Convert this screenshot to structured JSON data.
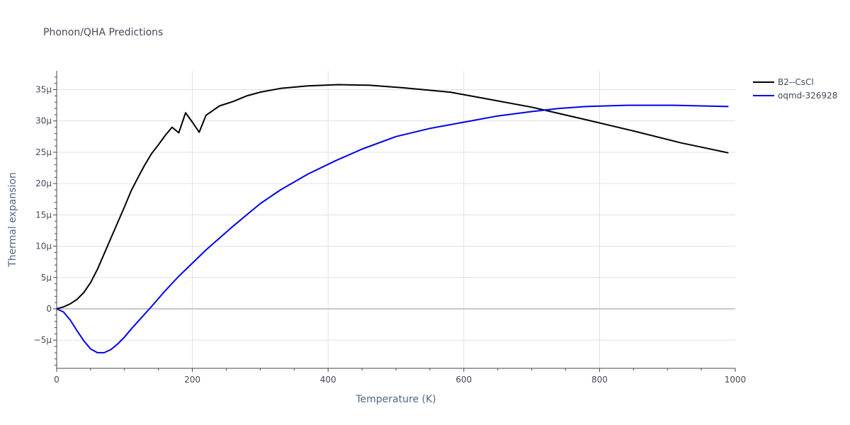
{
  "chart_data": {
    "type": "line",
    "title": "Phonon/QHA Predictions",
    "xlabel": "Temperature (K)",
    "ylabel": "Thermal expansion",
    "xlim": [
      0,
      1000
    ],
    "ylim": [
      -9.5,
      38
    ],
    "x_ticks": [
      0,
      200,
      400,
      600,
      800,
      1000
    ],
    "x_tick_labels": [
      "0",
      "200",
      "400",
      "600",
      "800",
      "1000"
    ],
    "y_ticks": [
      -5,
      0,
      5,
      10,
      15,
      20,
      25,
      30,
      35
    ],
    "y_tick_labels": [
      "−5μ",
      "0",
      "5μ",
      "10μ",
      "15μ",
      "20μ",
      "25μ",
      "30μ",
      "35μ"
    ],
    "grid": true,
    "legend_position": "top-right",
    "series": [
      {
        "name": "B2--CsCl",
        "color": "#000000",
        "x": [
          0,
          10,
          20,
          30,
          40,
          50,
          60,
          70,
          80,
          90,
          100,
          110,
          120,
          130,
          140,
          150,
          160,
          170,
          180,
          190,
          200,
          210,
          220,
          240,
          260,
          280,
          300,
          330,
          370,
          415,
          460,
          510,
          580,
          630,
          700,
          780,
          850,
          920,
          990
        ],
        "y": [
          0,
          0.3,
          0.8,
          1.5,
          2.6,
          4.2,
          6.3,
          8.8,
          11.3,
          13.8,
          16.3,
          18.9,
          21.0,
          23.0,
          24.8,
          26.2,
          27.7,
          29.0,
          28.1,
          31.3,
          29.8,
          28.2,
          30.9,
          32.4,
          33.1,
          34.0,
          34.6,
          35.2,
          35.6,
          35.8,
          35.7,
          35.3,
          34.6,
          33.6,
          32.2,
          30.2,
          28.4,
          26.5,
          24.9
        ]
      },
      {
        "name": "oqmd-326928",
        "color": "#0000ee",
        "x": [
          0,
          10,
          20,
          30,
          40,
          50,
          60,
          70,
          80,
          90,
          100,
          110,
          120,
          140,
          160,
          180,
          200,
          220,
          240,
          260,
          280,
          300,
          330,
          370,
          410,
          450,
          500,
          550,
          600,
          650,
          700,
          740,
          780,
          840,
          910,
          990
        ],
        "y": [
          0,
          -0.5,
          -1.8,
          -3.5,
          -5.1,
          -6.4,
          -7.0,
          -7.0,
          -6.5,
          -5.6,
          -4.5,
          -3.2,
          -2.0,
          0.4,
          2.9,
          5.2,
          7.3,
          9.4,
          11.3,
          13.2,
          15.0,
          16.8,
          19.0,
          21.5,
          23.6,
          25.5,
          27.5,
          28.8,
          29.8,
          30.8,
          31.5,
          32.0,
          32.3,
          32.5,
          32.5,
          32.3
        ]
      }
    ]
  }
}
